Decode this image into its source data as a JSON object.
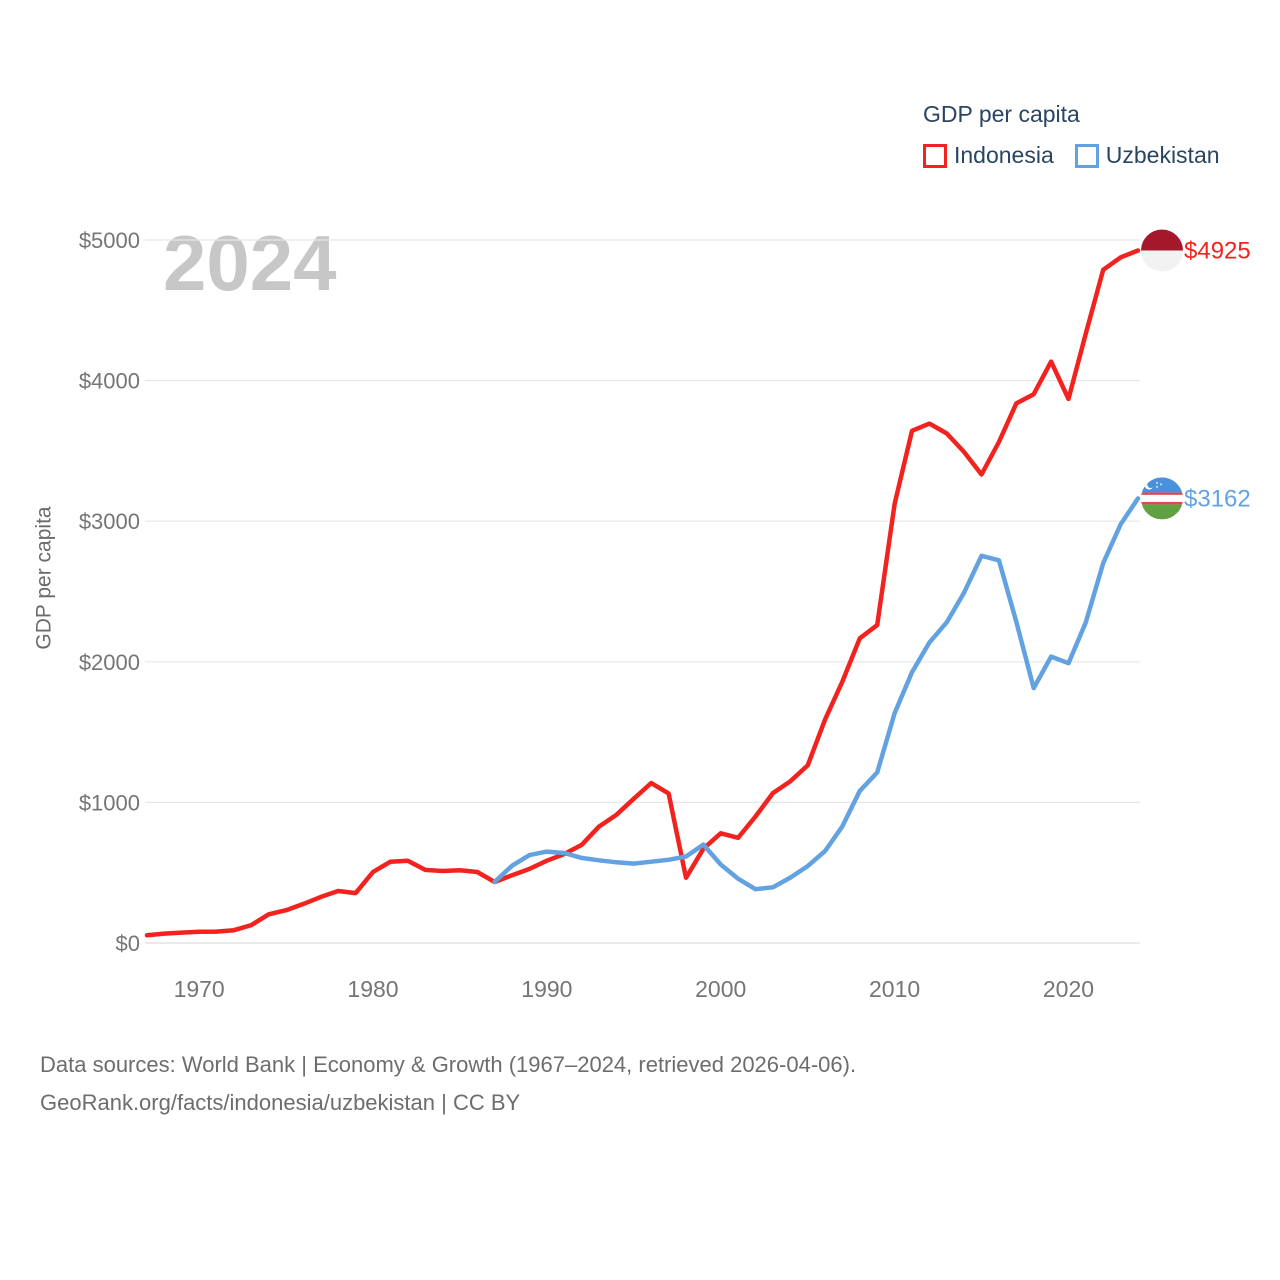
{
  "page": {
    "background": "#ffffff"
  },
  "theme": {
    "text_dark": "#2a4562",
    "tick_gray": "#757575",
    "axis_title_gray": "#6b6b6b",
    "footer_gray": "#6d6d6d",
    "watermark_gray": "#c7c7c7",
    "grid_color": "#e7e7e7"
  },
  "legend": {
    "title": "GDP per capita",
    "items": [
      {
        "label": "Indonesia",
        "color": "#f2231e"
      },
      {
        "label": "Uzbekistan",
        "color": "#63a2e1"
      }
    ]
  },
  "watermark": "2024",
  "axes": {
    "y_title": "GDP per capita",
    "y_ticks": [
      "$0",
      "$1000",
      "$2000",
      "$3000",
      "$4000",
      "$5000"
    ],
    "y_tick_values": [
      0,
      1000,
      2000,
      3000,
      4000,
      5000
    ],
    "x_ticks": [
      "1970",
      "1980",
      "1990",
      "2000",
      "2010",
      "2020"
    ]
  },
  "footer": {
    "line1": "Data sources: World Bank | Economy & Growth (1967–2024, retrieved 2026-04-06).",
    "line2": "GeoRank.org/facts/indonesia/uzbekistan | CC BY"
  },
  "chart_data": {
    "type": "line",
    "title": "GDP per capita",
    "ylabel": "GDP per capita",
    "xlim": [
      1967,
      2024
    ],
    "ylim": [
      0,
      5000
    ],
    "grid": "horizontal",
    "legend_position": "top-right",
    "series": [
      {
        "name": "Indonesia",
        "color": "#f2231e",
        "flag_icon": "indonesia-flag-icon",
        "end_label": "$4925",
        "start_year": 1967,
        "values": [
          55,
          67,
          74,
          80,
          81,
          91,
          127,
          204,
          233,
          278,
          328,
          370,
          355,
          505,
          578,
          585,
          520,
          512,
          518,
          505,
          434,
          482,
          527,
          585,
          633,
          698,
          828,
          912,
          1026,
          1137,
          1064,
          464,
          671,
          780,
          748,
          900,
          1066,
          1150,
          1263,
          1590,
          1860,
          2167,
          2261,
          3122,
          3643,
          3694,
          3624,
          3492,
          3332,
          3563,
          3838,
          3903,
          4135,
          3870,
          4334,
          4788,
          4876,
          4925
        ]
      },
      {
        "name": "Uzbekistan",
        "color": "#63a2e1",
        "flag_icon": "uzbekistan-flag-icon",
        "end_label": "$3162",
        "start_year": 1987,
        "values": [
          435,
          550,
          625,
          650,
          640,
          605,
          588,
          574,
          565,
          578,
          592,
          615,
          700,
          558,
          457,
          383,
          396,
          465,
          547,
          654,
          830,
          1082,
          1213,
          1634,
          1926,
          2137,
          2282,
          2492,
          2754,
          2722,
          2285,
          1813,
          2037,
          1990,
          2280,
          2702,
          2977,
          3162
        ]
      }
    ]
  }
}
